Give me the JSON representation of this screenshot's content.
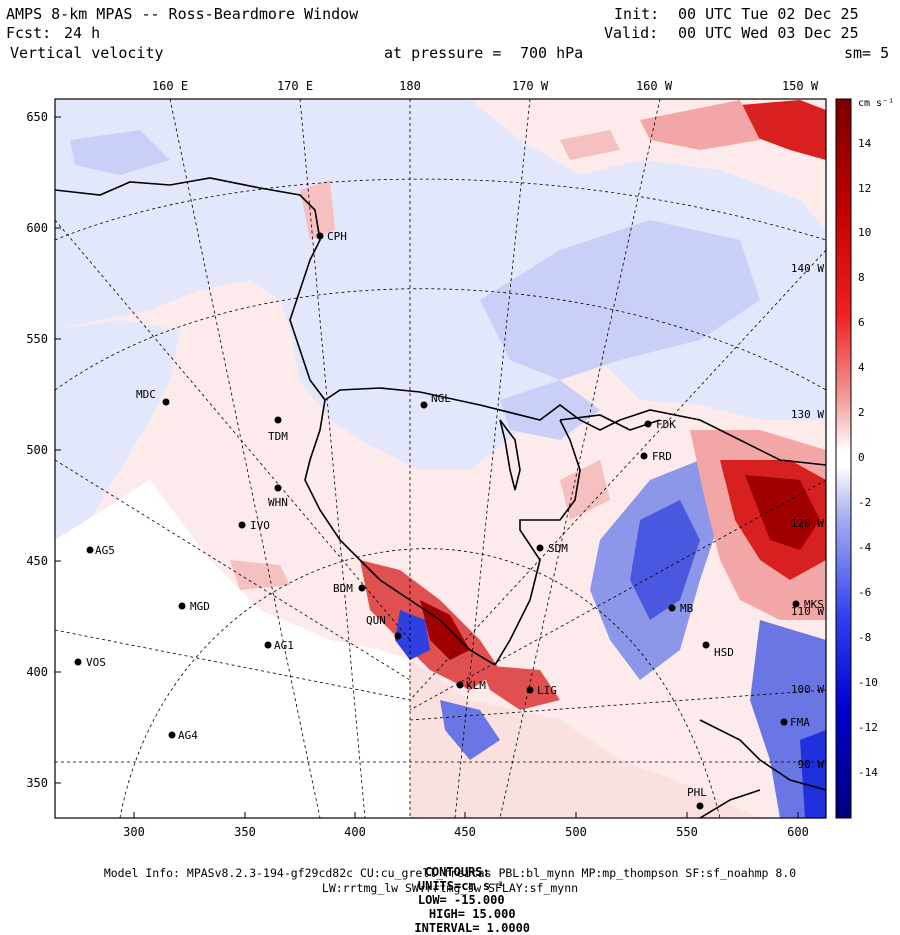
{
  "header": {
    "title": "AMPS 8-km MPAS -- Ross-Beardmore Window",
    "fcst_label": "Fcst:",
    "fcst_value": "24 h",
    "field": "Vertical velocity",
    "pressure_label": "at pressure =",
    "pressure_value": "700 hPa",
    "init_label": "Init:",
    "init_value": "00 UTC Tue 02 Dec 25",
    "valid_label": "Valid:",
    "valid_value": "00 UTC Wed 03 Dec 25",
    "smooth": "sm= 5"
  },
  "map": {
    "top_lon_labels": [
      "160 E",
      "170 E",
      "180",
      "170 W",
      "160 W",
      "150 W"
    ],
    "right_lon_labels": [
      "140 W",
      "130 W",
      "120 W",
      "110 W",
      "100 W",
      "90 W"
    ],
    "x_ticks": [
      "300",
      "350",
      "400",
      "450",
      "500",
      "550",
      "600"
    ],
    "y_ticks": [
      "650",
      "600",
      "550",
      "500",
      "450",
      "400",
      "350"
    ],
    "stations": [
      {
        "id": "CPH"
      },
      {
        "id": "NGL"
      },
      {
        "id": "MDC"
      },
      {
        "id": "TDM"
      },
      {
        "id": "WHN"
      },
      {
        "id": "IVO"
      },
      {
        "id": "AG5"
      },
      {
        "id": "MGD"
      },
      {
        "id": "AG1"
      },
      {
        "id": "VOS"
      },
      {
        "id": "AG4"
      },
      {
        "id": "BDM"
      },
      {
        "id": "QUN"
      },
      {
        "id": "KLM"
      },
      {
        "id": "LIG"
      },
      {
        "id": "SDM"
      },
      {
        "id": "FDK"
      },
      {
        "id": "FRD"
      },
      {
        "id": "MB"
      },
      {
        "id": "HSD"
      },
      {
        "id": "FMA"
      },
      {
        "id": "PHL"
      },
      {
        "id": "MKS"
      }
    ],
    "colors": {
      "strong_pos": "#c00000",
      "mod_pos": "#e87070",
      "weak_pos": "#fde2e2",
      "weak_neg": "#e4e8fc",
      "mod_neg": "#7a86e6",
      "strong_neg": "#0a10c8"
    }
  },
  "colorbar": {
    "units": "cm s⁻¹",
    "labels": [
      "14",
      "12",
      "10",
      "8",
      "6",
      "4",
      "2",
      "0",
      "-2",
      "-4",
      "-6",
      "-8",
      "-10",
      "-12",
      "-14"
    ]
  },
  "footer": {
    "contours_label": "CONTOURS:",
    "units": "UNITS=cm s⁻¹",
    "low": "LOW= -15.000",
    "high": "HIGH= 15.000",
    "interval": "INTERVAL= 1.0000",
    "model_info": "Model Info: MPASv8.2.3-194-gf29cd82c CU:cu_grell_freitas PBL:bl_mynn MP:mp_thompson SF:sf_noahmp 8.0",
    "radiation": "LW:rrtmg_lw SW:rrtmg_sw SFLAY:sf_mynn"
  }
}
